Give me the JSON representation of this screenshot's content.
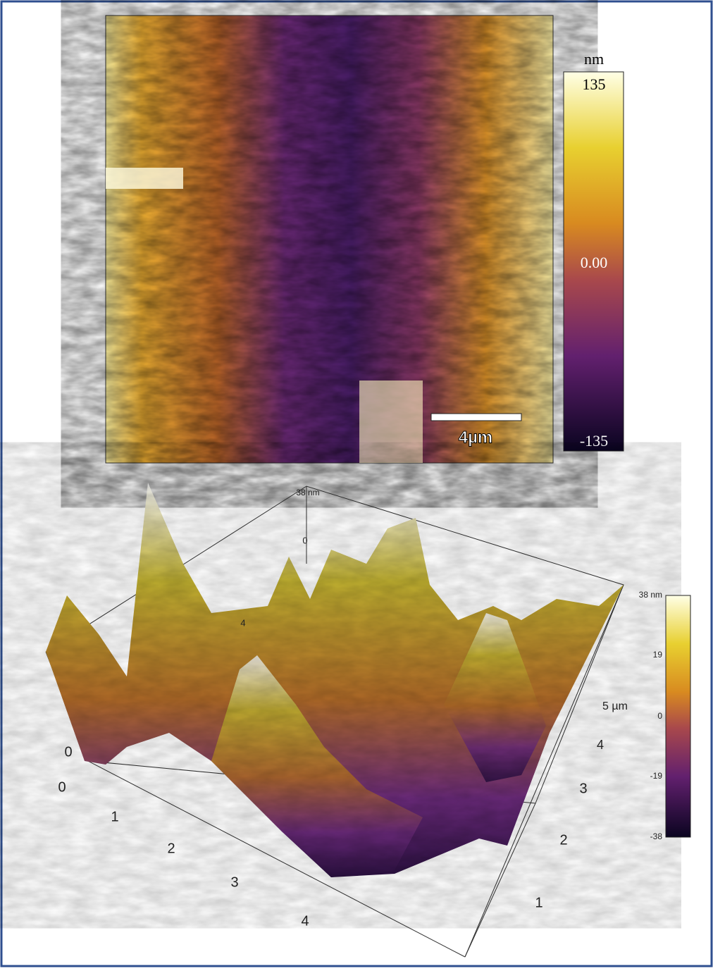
{
  "map_2d": {
    "colorbar_unit": "nm",
    "colorbar_labels": [
      "135",
      "0.00",
      "-135"
    ],
    "scale_bar": "4µm"
  },
  "surface_3d": {
    "z_labels": [
      "38 nm",
      "0",
      "4"
    ],
    "corner_z_label": "0",
    "x_labels": [
      "0",
      "1",
      "2",
      "3",
      "4"
    ],
    "y_labels": [
      "5 µm",
      "4",
      "3",
      "2",
      "1"
    ],
    "colorbar_labels": [
      "38 nm",
      "19",
      "0",
      "-19",
      "-38"
    ]
  }
}
